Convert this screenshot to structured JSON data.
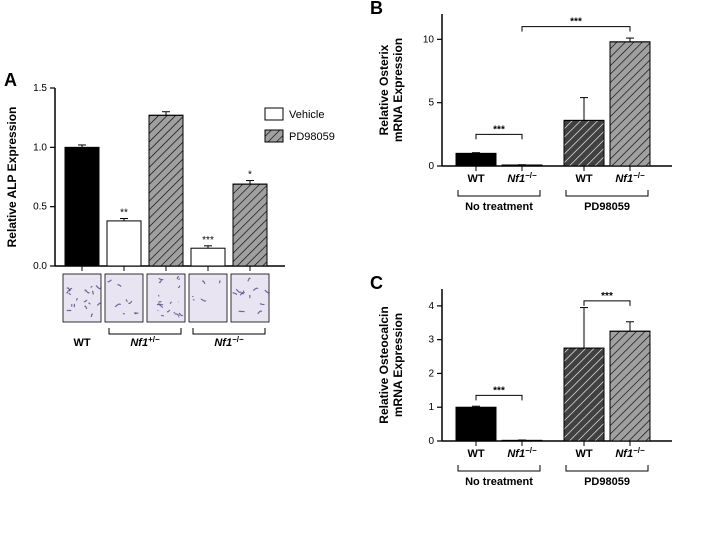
{
  "panelA": {
    "label": "A",
    "type": "bar",
    "y_axis_label": "Relative ALP Expression",
    "ylim": [
      0,
      1.5
    ],
    "yticks": [
      0.0,
      0.5,
      1.0,
      1.5
    ],
    "legend": [
      {
        "label": "Vehicle",
        "fill": "#ffffff",
        "hatched": false
      },
      {
        "label": "PD98059",
        "fill": "#a0a0a0",
        "hatched": true
      }
    ],
    "bars": [
      {
        "x": 0,
        "value": 1.0,
        "err": 0.02,
        "fill": "#000000",
        "hatched": false,
        "sig": ""
      },
      {
        "x": 1,
        "value": 0.38,
        "err": 0.02,
        "fill": "#ffffff",
        "hatched": false,
        "sig": "**"
      },
      {
        "x": 2,
        "value": 1.27,
        "err": 0.03,
        "fill": "#a0a0a0",
        "hatched": true,
        "sig": ""
      },
      {
        "x": 3,
        "value": 0.15,
        "err": 0.02,
        "fill": "#ffffff",
        "hatched": false,
        "sig": "***"
      },
      {
        "x": 4,
        "value": 0.69,
        "err": 0.03,
        "fill": "#a0a0a0",
        "hatched": true,
        "sig": "*"
      }
    ],
    "group_labels": [
      {
        "text": "WT",
        "center_bar": 0,
        "span": 1,
        "italic": false
      },
      {
        "text": "Nf1+/-",
        "center_bar": 1.5,
        "span": 2,
        "italic": true,
        "sup": "+/-"
      },
      {
        "text": "Nf1-/-",
        "center_bar": 3.5,
        "span": 2,
        "italic": true,
        "sup": "-/-"
      }
    ],
    "micrograph_fill": "#e8e4f2",
    "micrograph_strokes": "#4b3e78"
  },
  "panelB": {
    "label": "B",
    "type": "bar",
    "y_axis_label": "Relative Osterix\nmRNA Expression",
    "ylim": [
      0,
      12
    ],
    "yticks": [
      0,
      5,
      10
    ],
    "bars": [
      {
        "x": 0,
        "value": 1.0,
        "err": 0.05,
        "fill": "#000000",
        "hatched": false
      },
      {
        "x": 1,
        "value": 0.08,
        "err": 0.02,
        "fill": "#ffffff",
        "hatched": false
      },
      {
        "x": 2,
        "value": 3.6,
        "err": 1.8,
        "fill": "#404040",
        "hatched": true
      },
      {
        "x": 3,
        "value": 9.8,
        "err": 0.3,
        "fill": "#a0a0a0",
        "hatched": true
      }
    ],
    "x_labels": [
      {
        "text": "WT",
        "bar": 0,
        "italic": false
      },
      {
        "text": "Nf1-/-",
        "bar": 1,
        "italic": true,
        "sup": "-/-"
      },
      {
        "text": "WT",
        "bar": 2,
        "italic": false
      },
      {
        "text": "Nf1-/-",
        "bar": 3,
        "italic": true,
        "sup": "-/-"
      }
    ],
    "group_labels": [
      {
        "text": "No treatment",
        "center_bar": 0.5,
        "span": 2
      },
      {
        "text": "PD98059",
        "center_bar": 2.5,
        "span": 2
      }
    ],
    "sig_lines": [
      {
        "from_bar": 0,
        "to_bar": 1,
        "y": 2.5,
        "label": "***"
      },
      {
        "from_bar": 1,
        "to_bar": 3,
        "y": 11.0,
        "label": "***"
      }
    ]
  },
  "panelC": {
    "label": "C",
    "type": "bar",
    "y_axis_label": "Relative Osteocalcin\nmRNA Expression",
    "ylim": [
      0,
      4.5
    ],
    "yticks": [
      0,
      1,
      2,
      3,
      4
    ],
    "bars": [
      {
        "x": 0,
        "value": 1.0,
        "err": 0.03,
        "fill": "#000000",
        "hatched": false
      },
      {
        "x": 1,
        "value": 0.02,
        "err": 0.01,
        "fill": "#ffffff",
        "hatched": false
      },
      {
        "x": 2,
        "value": 2.75,
        "err": 1.2,
        "fill": "#404040",
        "hatched": true
      },
      {
        "x": 3,
        "value": 3.25,
        "err": 0.28,
        "fill": "#a0a0a0",
        "hatched": true
      }
    ],
    "x_labels": [
      {
        "text": "WT",
        "bar": 0,
        "italic": false
      },
      {
        "text": "Nf1-/-",
        "bar": 1,
        "italic": true,
        "sup": "-/-"
      },
      {
        "text": "WT",
        "bar": 2,
        "italic": false
      },
      {
        "text": "Nf1-/-",
        "bar": 3,
        "italic": true,
        "sup": "-/-"
      }
    ],
    "group_labels": [
      {
        "text": "No treatment",
        "center_bar": 0.5,
        "span": 2
      },
      {
        "text": "PD98059",
        "center_bar": 2.5,
        "span": 2
      }
    ],
    "sig_lines": [
      {
        "from_bar": 0,
        "to_bar": 1,
        "y": 1.35,
        "label": "***"
      },
      {
        "from_bar": 2,
        "to_bar": 3,
        "y": 4.15,
        "label": "***"
      }
    ]
  }
}
